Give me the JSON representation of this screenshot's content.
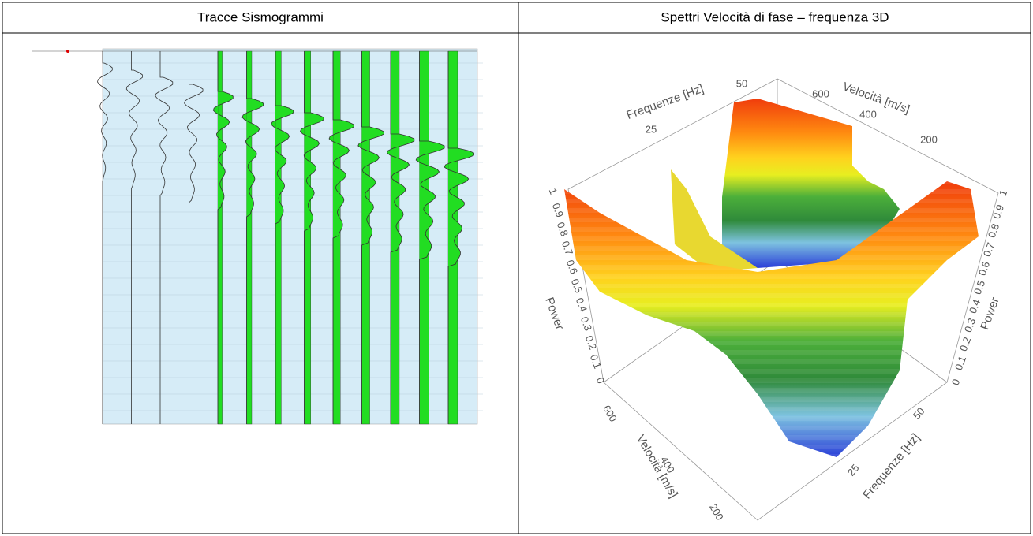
{
  "table": {
    "headers": [
      "Tracce Sismogrammi",
      "Spettri Velocità di fase – frequenza 3D"
    ]
  },
  "chart3d": {
    "frequency_label": "Frequenze [Hz]",
    "velocity_label": "Velocità [m/s]",
    "power_label": "Power",
    "frequency_ticks": [
      "25",
      "50"
    ],
    "velocity_ticks": [
      "600",
      "400",
      "200"
    ],
    "power_ticks": [
      "1",
      "0.9",
      "0.8",
      "0.7",
      "0.6",
      "0.5",
      "0.4",
      "0.3",
      "0.2",
      "0.1",
      "0"
    ]
  }
}
